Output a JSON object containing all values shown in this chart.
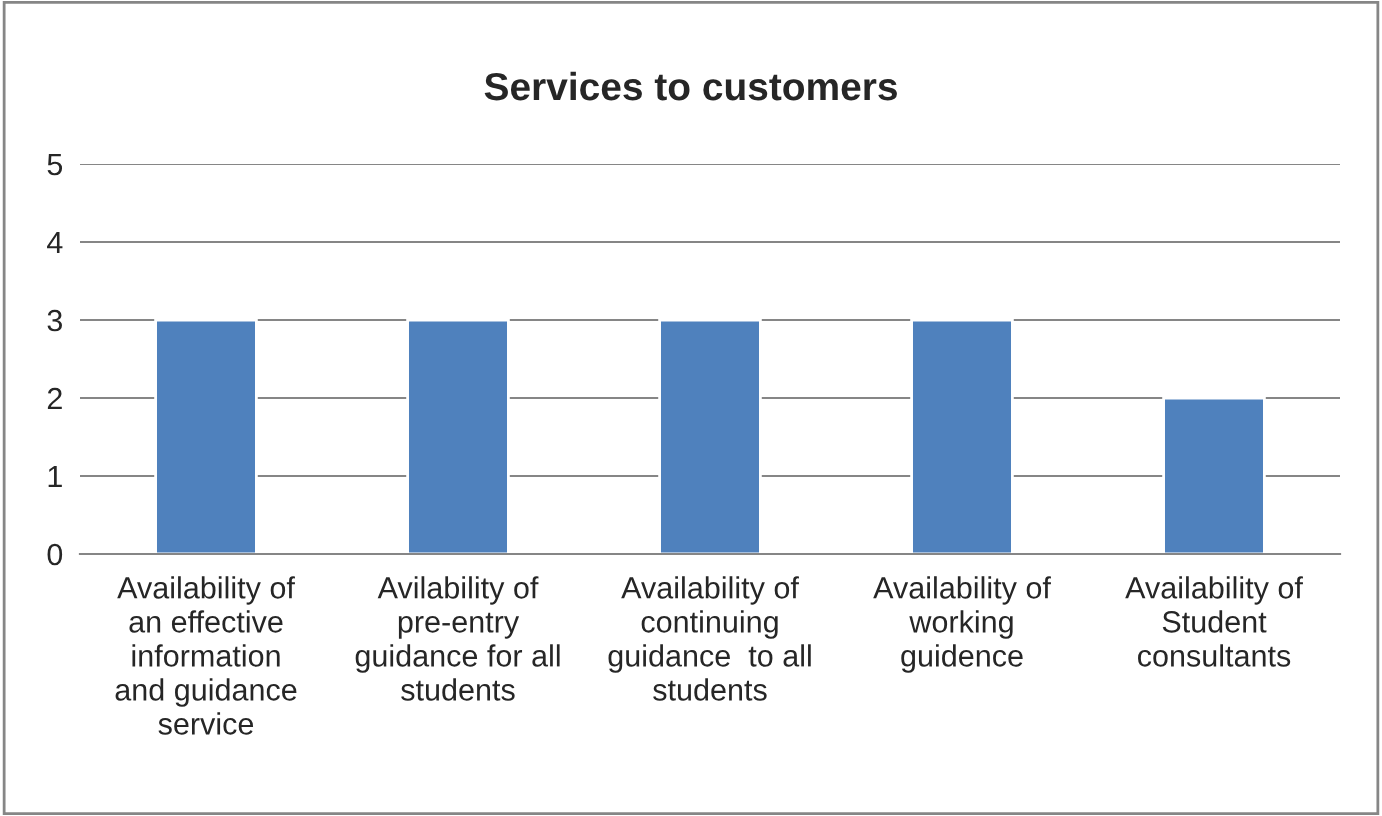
{
  "chart_data": {
    "type": "bar",
    "title": "Services to customers",
    "categories": [
      "Availability of\nan effective\ninformation\nand guidance\nservice",
      "Avilability of\npre-entry\nguidance for all\nstudents",
      "Availability of\ncontinuing\nguidance  to all\nstudents",
      "Availability of\nworking\nguidence",
      "Availability of\nStudent\nconsultants"
    ],
    "values": [
      3,
      3,
      3,
      3,
      2
    ],
    "color": "#4f81bd",
    "ylim": [
      0,
      5
    ],
    "yticks": [
      0,
      1,
      2,
      3,
      4,
      5
    ],
    "grid": "y",
    "legend": false
  }
}
